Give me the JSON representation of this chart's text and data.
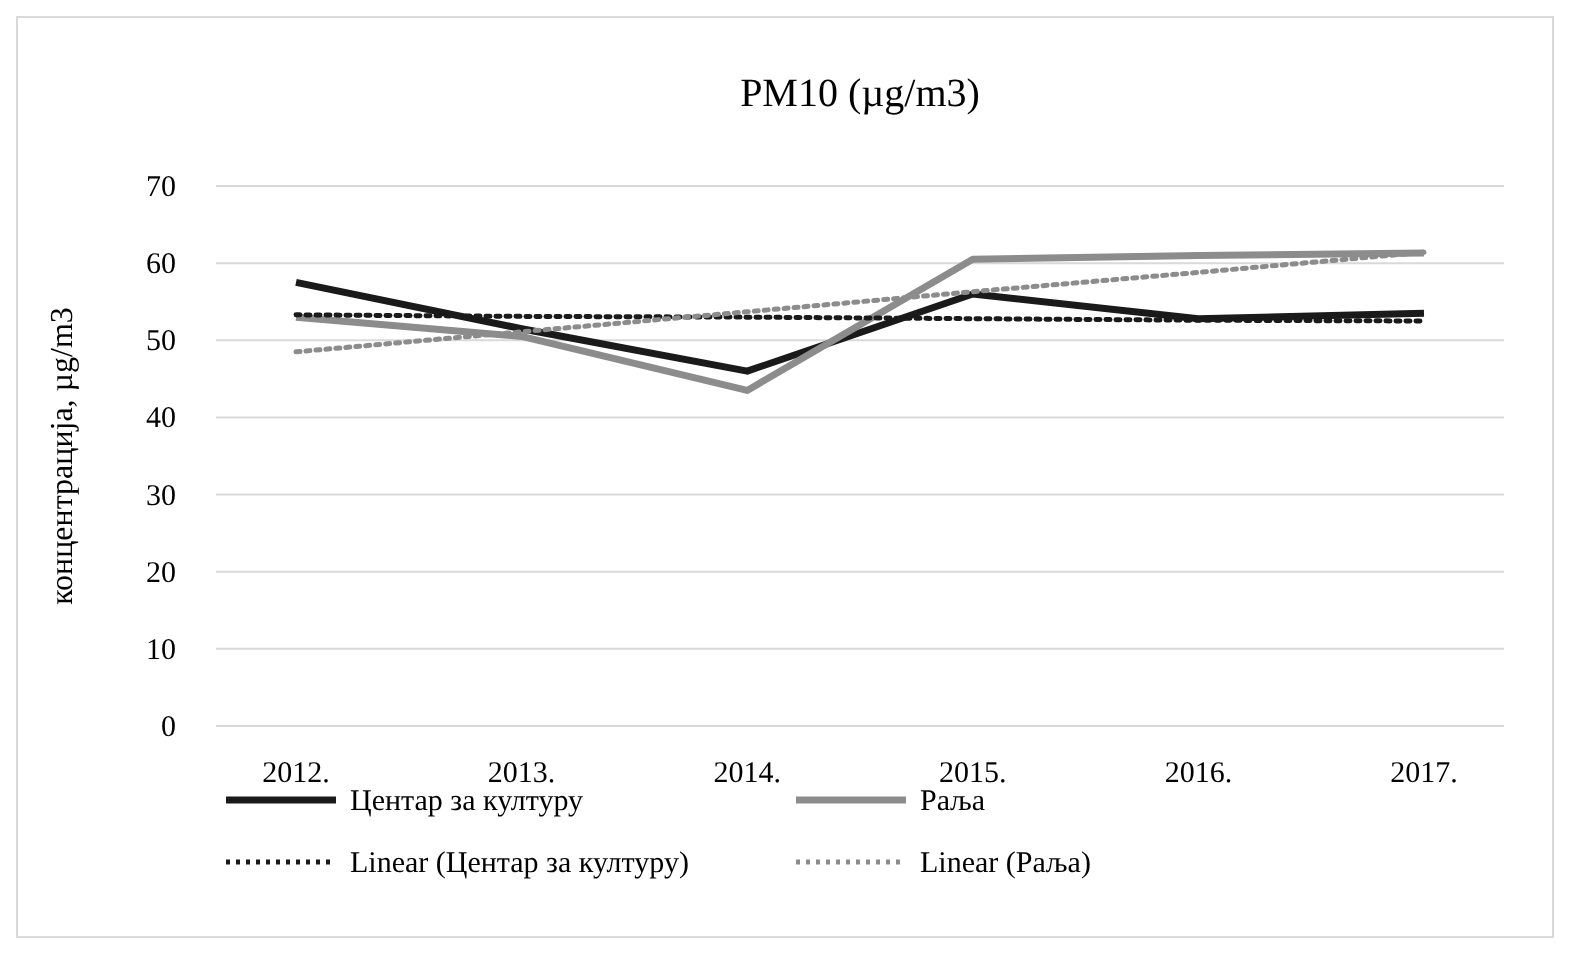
{
  "chart_data": {
    "type": "line",
    "title": "PM10 (µg/m3)",
    "ylabel": "концентрација, µg/m3",
    "categories": [
      "2012.",
      "2013.",
      "2014.",
      "2015.",
      "2016.",
      "2017."
    ],
    "series": [
      {
        "name": "Центар за културу",
        "color": "#1a1a1a",
        "values": [
          57.5,
          51.5,
          46,
          56,
          52.8,
          53.5
        ],
        "line_style": "solid"
      },
      {
        "name": "Раља",
        "color": "#8c8c8c",
        "values": [
          53,
          50.5,
          43.5,
          60.5,
          61,
          61.3
        ],
        "line_style": "solid"
      },
      {
        "name": "Linear (Центар за културу)",
        "color": "#1a1a1a",
        "values": [
          53.3,
          53.1,
          53,
          52.8,
          52.6,
          52.5
        ],
        "line_style": "dotted"
      },
      {
        "name": "Linear (Раља)",
        "color": "#8c8c8c",
        "values": [
          48.5,
          51.1,
          53.7,
          56.3,
          58.8,
          61.4
        ],
        "line_style": "dotted"
      }
    ],
    "ylim": [
      0,
      70
    ],
    "yticks": [
      0,
      10,
      20,
      30,
      40,
      50,
      60,
      70
    ],
    "grid": "y",
    "legend": "bottom",
    "marker": "none"
  }
}
